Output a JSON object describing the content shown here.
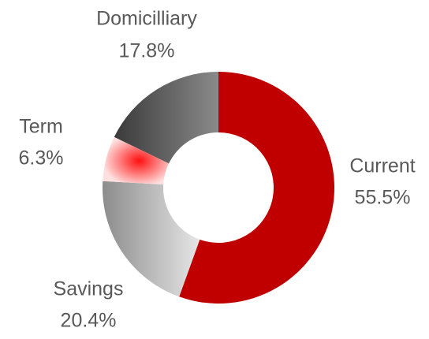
{
  "chart_data": {
    "type": "donut",
    "categories": [
      "Current",
      "Savings",
      "Term",
      "Domicilliary"
    ],
    "values": [
      55.5,
      20.4,
      6.3,
      17.8
    ],
    "value_labels": [
      "55.5%",
      "20.4%",
      "6.3%",
      "17.8%"
    ],
    "colors": [
      "#c00000",
      "#8c8c8c",
      "#ff1010",
      "#5e5e5e"
    ]
  }
}
